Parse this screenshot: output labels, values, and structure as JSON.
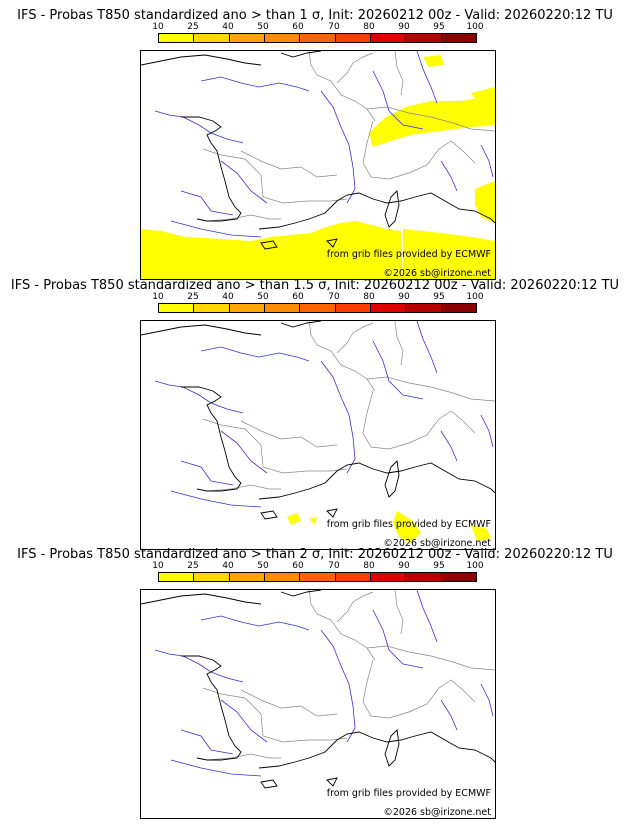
{
  "colorbar": {
    "ticks": [
      "10",
      "25",
      "40",
      "50",
      "60",
      "70",
      "80",
      "90",
      "95",
      "100"
    ],
    "colors": [
      "#ffff00",
      "#ffd700",
      "#ffa500",
      "#ff8c00",
      "#ff6400",
      "#ff3c00",
      "#dc0000",
      "#b40000",
      "#8b0000"
    ]
  },
  "panels": [
    {
      "title": "IFS - Probas T850  standardized ano > than 1 σ, Init: 20260212 00z - Valid: 20260220:12 TU",
      "credit": "from grib files provided by ECMWF",
      "copyright": "©2026 sb@irizone.net"
    },
    {
      "title": "IFS - Probas T850  standardized ano > than 1.5 σ, Init: 20260212 00z - Valid: 20260220:12 TU",
      "credit": "from grib files provided by ECMWF",
      "copyright": "©2026 sb@irizone.net"
    },
    {
      "title": "IFS - Probas T850  standardized ano > than 2 σ, Init: 20260212 00z - Valid: 20260220:12 TU",
      "credit": "from grib files provided by ECMWF",
      "copyright": "©2026 sb@irizone.net"
    }
  ]
}
